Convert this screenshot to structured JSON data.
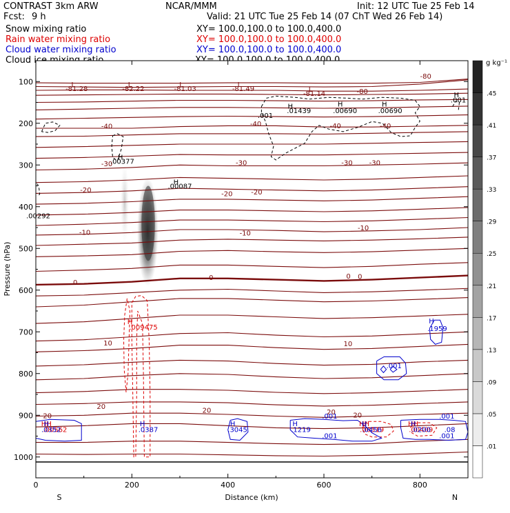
{
  "header": {
    "model": "CONTRAST  3km ARW",
    "center": "NCAR/MMM",
    "init": "Init: 12 UTC Tue 25 Feb 14",
    "fcst_label": "Fcst:",
    "fcst_value": "9 h",
    "valid": "Valid: 21 UTC Tue 25 Feb 14 (07 ChT Wed 26 Feb 14)"
  },
  "legend": [
    {
      "name": "Snow mixing ratio",
      "xy": "",
      "color": "#000000"
    },
    {
      "name": "Rain water mixing ratio",
      "xy": "XY=  100.0,100.0 to 100.0,400.0",
      "color": "#dd0000"
    },
    {
      "name": "Cloud water mixing ratio",
      "xy": "XY=  100.0,100.0 to 100.0,400.0",
      "color": "#0000cc"
    },
    {
      "name": "Cloud ice mixing ratio",
      "xy": "XY=  100.0,100.0 to 100.0,400.0",
      "color": "#000000"
    }
  ],
  "snow_xy": "XY=  100.0,100.0 to 100.0,400.0",
  "colors": {
    "temperature": "#7a0a0a",
    "rain": "#dd0000",
    "cloud_water": "#0000cc",
    "cloud_ice": "#000000",
    "snow_shade": "#333333"
  },
  "chart_data": {
    "type": "cross-section",
    "xlabel": "Distance (km)",
    "ylabel": "Pressure (hPa)",
    "xlim": [
      0,
      900
    ],
    "ylim": [
      1050,
      50
    ],
    "xticks": [
      0,
      200,
      400,
      600,
      800
    ],
    "yticks": [
      100,
      200,
      300,
      400,
      500,
      600,
      700,
      800,
      900,
      1000
    ],
    "endpoints": {
      "left": "S",
      "right": "N"
    },
    "colorbar": {
      "unit": "g kg⁻¹",
      "levels": [
        ".01",
        ".05",
        ".09",
        ".13",
        ".17",
        ".21",
        ".25",
        ".29",
        ".33",
        ".37",
        ".41",
        ".45"
      ]
    },
    "temperature_labels": [
      {
        "x": 78,
        "p": 113,
        "text": "L"
      },
      {
        "x": 85,
        "p": 123,
        "text": "-81.28"
      },
      {
        "x": 196,
        "p": 113,
        "text": "L"
      },
      {
        "x": 203,
        "p": 123,
        "text": "-82.22"
      },
      {
        "x": 303,
        "p": 113,
        "text": "L"
      },
      {
        "x": 311,
        "p": 123,
        "text": "-81.03"
      },
      {
        "x": 424,
        "p": 113,
        "text": "L"
      },
      {
        "x": 432,
        "p": 123,
        "text": "-81.49"
      },
      {
        "x": 572,
        "p": 124,
        "text": "L"
      },
      {
        "x": 580,
        "p": 134,
        "text": "-81.14"
      },
      {
        "x": 680,
        "p": 129,
        "text": "-80"
      },
      {
        "x": 812,
        "p": 93,
        "text": "-80"
      },
      {
        "x": 148,
        "p": 213,
        "text": "-40"
      },
      {
        "x": 458,
        "p": 207,
        "text": "-40"
      },
      {
        "x": 624,
        "p": 212,
        "text": "-40"
      },
      {
        "x": 728,
        "p": 212,
        "text": "-40"
      },
      {
        "x": 148,
        "p": 303,
        "text": "-30"
      },
      {
        "x": 428,
        "p": 300,
        "text": "-30"
      },
      {
        "x": 648,
        "p": 300,
        "text": "-30"
      },
      {
        "x": 706,
        "p": 300,
        "text": "-30"
      },
      {
        "x": 104,
        "p": 366,
        "text": "-20"
      },
      {
        "x": 398,
        "p": 375,
        "text": "-20"
      },
      {
        "x": 460,
        "p": 371,
        "text": "-20"
      },
      {
        "x": 102,
        "p": 467,
        "text": "-10"
      },
      {
        "x": 436,
        "p": 469,
        "text": "-10"
      },
      {
        "x": 682,
        "p": 457,
        "text": "-10"
      },
      {
        "x": 82,
        "p": 587,
        "text": "0"
      },
      {
        "x": 365,
        "p": 576,
        "text": "0"
      },
      {
        "x": 651,
        "p": 572,
        "text": "0"
      },
      {
        "x": 675,
        "p": 573,
        "text": "0"
      },
      {
        "x": 150,
        "p": 733,
        "text": "10"
      },
      {
        "x": 650,
        "p": 734,
        "text": "10"
      },
      {
        "x": 24,
        "p": 907,
        "text": "20"
      },
      {
        "x": 136,
        "p": 885,
        "text": "20"
      },
      {
        "x": 356,
        "p": 894,
        "text": "20"
      },
      {
        "x": 615,
        "p": 898,
        "text": "20"
      },
      {
        "x": 670,
        "p": 905,
        "text": "20"
      }
    ],
    "snow_labels": [
      {
        "x": 176,
        "p": 287,
        "text": "H"
      },
      {
        "x": 180,
        "p": 297,
        "text": ".00377"
      },
      {
        "x": 292,
        "p": 347,
        "text": "H"
      },
      {
        "x": 300,
        "p": 357,
        "text": ".00087"
      },
      {
        "x": 5,
        "p": 428,
        "text": ".00292"
      }
    ],
    "ice_labels": [
      {
        "x": 530,
        "p": 165,
        "text": "H"
      },
      {
        "x": 548,
        "p": 176,
        "text": ".01439"
      },
      {
        "x": 634,
        "p": 160,
        "text": "H"
      },
      {
        "x": 644,
        "p": 176,
        "text": ".00690"
      },
      {
        "x": 726,
        "p": 160,
        "text": "H"
      },
      {
        "x": 738,
        "p": 176,
        "text": ".00690"
      },
      {
        "x": 478,
        "p": 187,
        "text": ".001"
      },
      {
        "x": 876,
        "p": 138,
        "text": "H"
      },
      {
        "x": 880,
        "p": 150,
        "text": ".001"
      }
    ],
    "rain_labels": [
      {
        "x": 196,
        "p": 681,
        "text": "H"
      },
      {
        "x": 224,
        "p": 695,
        "text": ".009475"
      },
      {
        "x": 22,
        "p": 926,
        "text": "HH"
      },
      {
        "x": 40,
        "p": 940,
        "text": ".00562"
      },
      {
        "x": 684,
        "p": 926,
        "text": "HH"
      },
      {
        "x": 700,
        "p": 940,
        "text": ".00519"
      },
      {
        "x": 786,
        "p": 926,
        "text": "HH"
      },
      {
        "x": 802,
        "p": 940,
        "text": ".00409"
      }
    ],
    "cloud_labels": [
      {
        "x": 22,
        "p": 926,
        "text": "H"
      },
      {
        "x": 32,
        "p": 940,
        "text": ".0352"
      },
      {
        "x": 222,
        "p": 926,
        "text": "H"
      },
      {
        "x": 234,
        "p": 940,
        "text": ".0387"
      },
      {
        "x": 410,
        "p": 926,
        "text": "H"
      },
      {
        "x": 420,
        "p": 940,
        "text": ".3045"
      },
      {
        "x": 540,
        "p": 926,
        "text": "H"
      },
      {
        "x": 552,
        "p": 940,
        "text": ".1219"
      },
      {
        "x": 684,
        "p": 926,
        "text": "H"
      },
      {
        "x": 700,
        "p": 940,
        "text": ".0456"
      },
      {
        "x": 786,
        "p": 926,
        "text": "H"
      },
      {
        "x": 802,
        "p": 940,
        "text": ".0200"
      },
      {
        "x": 862,
        "p": 940,
        "text": ".08"
      },
      {
        "x": 612,
        "p": 908,
        "text": ".001"
      },
      {
        "x": 612,
        "p": 955,
        "text": ".001"
      },
      {
        "x": 856,
        "p": 908,
        "text": ".001"
      },
      {
        "x": 856,
        "p": 955,
        "text": ".001"
      },
      {
        "x": 746,
        "p": 787,
        "text": ".001"
      },
      {
        "x": 824,
        "p": 680,
        "text": "H"
      },
      {
        "x": 836,
        "p": 698,
        "text": ".1959"
      }
    ]
  }
}
